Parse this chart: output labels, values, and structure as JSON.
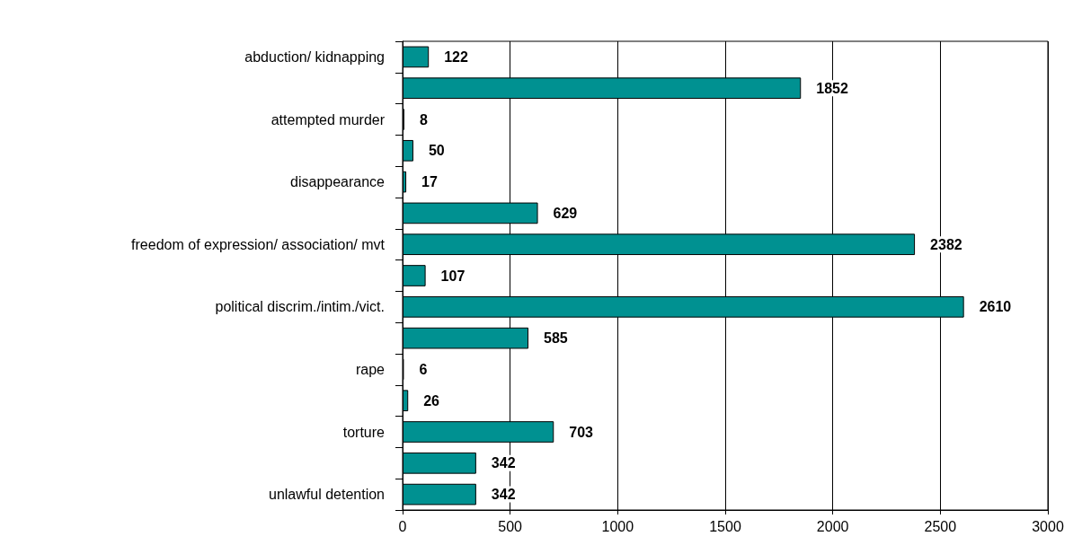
{
  "chart_data": {
    "type": "bar",
    "orientation": "horizontal",
    "categories": [
      "abduction/ kidnapping",
      null,
      "attempted murder",
      null,
      "disappearance",
      null,
      "freedom of expression/ association/ mvt",
      null,
      "political discrim./intim./vict.",
      null,
      "rape",
      null,
      "torture",
      null,
      "unlawful detention"
    ],
    "values": [
      122,
      1852,
      8,
      50,
      17,
      629,
      2382,
      107,
      2610,
      585,
      6,
      26,
      703,
      342,
      342
    ],
    "color": "#009191",
    "data_labels": true,
    "grid": "x",
    "xlim": [
      0,
      3000
    ],
    "xticks": [
      0,
      500,
      1000,
      1500,
      2000,
      2500,
      3000
    ]
  }
}
